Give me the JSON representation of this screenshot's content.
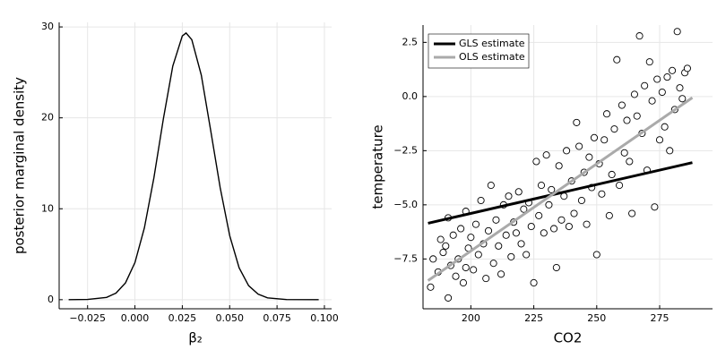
{
  "chart_data": [
    {
      "type": "line",
      "xlabel": "β₂",
      "ylabel": "posterior marginal density",
      "x": [
        -0.035,
        -0.025,
        -0.015,
        -0.01,
        -0.005,
        0.0,
        0.005,
        0.01,
        0.015,
        0.02,
        0.025,
        0.027,
        0.03,
        0.035,
        0.04,
        0.045,
        0.05,
        0.055,
        0.06,
        0.065,
        0.07,
        0.08,
        0.097
      ],
      "values": [
        0,
        0.02,
        0.25,
        0.72,
        1.84,
        4.09,
        7.9,
        13.4,
        19.9,
        25.7,
        29.0,
        29.33,
        28.6,
        24.7,
        18.6,
        12.3,
        7.04,
        3.51,
        1.54,
        0.6,
        0.2,
        0.01,
        0
      ],
      "color": "#000000",
      "xlim": [
        -0.04,
        0.1038
      ],
      "ylim": [
        -1,
        30.5
      ],
      "xticks": [
        {
          "value": -0.025,
          "label": "−0.025"
        },
        {
          "value": 0,
          "label": "0.000"
        },
        {
          "value": 0.025,
          "label": "0.025"
        },
        {
          "value": 0.05,
          "label": "0.050"
        },
        {
          "value": 0.075,
          "label": "0.075"
        },
        {
          "value": 0.1,
          "label": "0.100"
        }
      ],
      "yticks": [
        0,
        10,
        20,
        30
      ],
      "grid": true
    },
    {
      "type": "scatter",
      "xlabel": "CO2",
      "ylabel": "temperature",
      "x": [
        184,
        185,
        187,
        188,
        189,
        190,
        191,
        191,
        192,
        193,
        194,
        195,
        196,
        197,
        198,
        198,
        199,
        200,
        201,
        202,
        203,
        204,
        205,
        206,
        207,
        208,
        209,
        210,
        211,
        212,
        213,
        214,
        215,
        216,
        217,
        218,
        219,
        220,
        221,
        222,
        223,
        224,
        225,
        226,
        227,
        228,
        229,
        230,
        231,
        232,
        233,
        234,
        235,
        236,
        237,
        238,
        239,
        240,
        241,
        242,
        243,
        244,
        245,
        246,
        247,
        248,
        249,
        250,
        251,
        252,
        253,
        254,
        255,
        256,
        257,
        258,
        259,
        260,
        261,
        262,
        263,
        264,
        265,
        266,
        267,
        268,
        269,
        270,
        271,
        272,
        273,
        274,
        275,
        276,
        277,
        278,
        279,
        280,
        281,
        282,
        283,
        284,
        285,
        286
      ],
      "values": [
        -8.8,
        -7.5,
        -8.1,
        -6.6,
        -7.2,
        -6.9,
        -9.3,
        -5.6,
        -7.8,
        -6.4,
        -8.3,
        -7.5,
        -6.1,
        -8.6,
        -5.3,
        -7.9,
        -7.0,
        -6.5,
        -8.0,
        -5.9,
        -7.3,
        -4.8,
        -6.8,
        -8.4,
        -6.2,
        -4.1,
        -7.7,
        -5.7,
        -6.9,
        -8.2,
        -5.0,
        -6.4,
        -4.6,
        -7.4,
        -5.8,
        -6.3,
        -4.4,
        -6.8,
        -5.2,
        -7.3,
        -4.9,
        -6.0,
        -8.6,
        -3.0,
        -5.5,
        -4.1,
        -6.3,
        -2.7,
        -5.0,
        -4.3,
        -6.1,
        -7.9,
        -3.2,
        -5.7,
        -4.6,
        -2.5,
        -6.0,
        -3.9,
        -5.4,
        -1.2,
        -2.3,
        -4.8,
        -3.5,
        -5.9,
        -2.8,
        -4.2,
        -1.9,
        -7.3,
        -3.1,
        -4.5,
        -2.0,
        -0.8,
        -5.5,
        -3.6,
        -1.5,
        1.7,
        -4.1,
        -0.4,
        -2.6,
        -1.1,
        -3.0,
        -5.4,
        0.1,
        -0.9,
        2.8,
        -1.7,
        0.5,
        -3.4,
        1.6,
        -0.2,
        -5.1,
        0.8,
        -2.0,
        0.2,
        -1.4,
        0.9,
        -2.5,
        1.2,
        -0.6,
        3.0,
        0.4,
        -0.1,
        1.1,
        1.3
      ],
      "series": [
        {
          "name": "GLS estimate",
          "color": "#000000",
          "x": [
            183,
            288
          ],
          "values": [
            -5.85,
            -3.05
          ]
        },
        {
          "name": "OLS estimate",
          "color": "#aaaaaa",
          "x": [
            183,
            288
          ],
          "values": [
            -8.5,
            -0.05
          ]
        }
      ],
      "xlim": [
        181,
        296
      ],
      "ylim": [
        -9.8,
        3.3
      ],
      "xticks": [
        200,
        225,
        250,
        275
      ],
      "yticks": [
        {
          "value": 2.5,
          "label": "2.5"
        },
        {
          "value": 0,
          "label": "0.0"
        },
        {
          "value": -2.5,
          "label": "−2.5"
        },
        {
          "value": -5,
          "label": "−5.0"
        },
        {
          "value": -7.5,
          "label": "−7.5"
        }
      ],
      "grid": true,
      "legend": "top-left"
    }
  ]
}
